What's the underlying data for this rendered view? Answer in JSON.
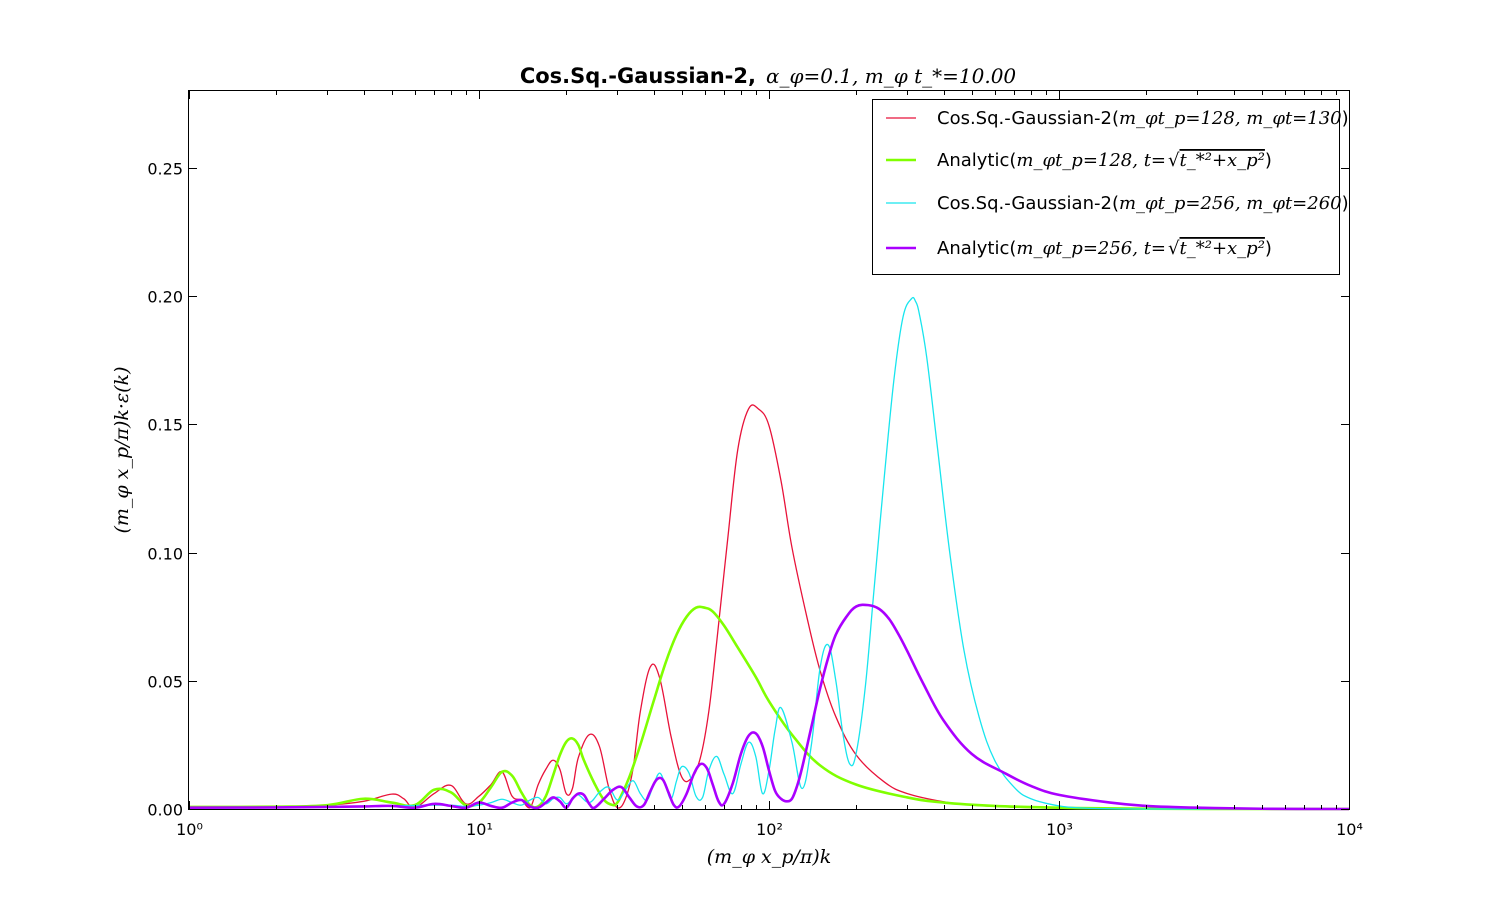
{
  "chart_data": {
    "type": "line",
    "title": {
      "bold": "Cos.Sq.-Gaussian-2,",
      "math": "α_φ=0.1, m_φ t_*=10.00"
    },
    "xlabel": "(m_φ x_p/π)k",
    "ylabel": "(m_φ x_p/π)k·ε(k)",
    "xscale": "log",
    "xlim": [
      1,
      10000
    ],
    "ylim": [
      0,
      0.28
    ],
    "x_ticks": [
      1,
      10,
      100,
      1000,
      10000
    ],
    "x_tick_labels": [
      "10⁰",
      "10¹",
      "10²",
      "10³",
      "10⁴"
    ],
    "y_ticks": [
      0,
      0.05,
      0.1,
      0.15,
      0.2,
      0.25
    ],
    "y_tick_labels": [
      "0.00",
      "0.05",
      "0.10",
      "0.15",
      "0.20",
      "0.25"
    ],
    "grid": false,
    "legend_position": "top-right",
    "series": [
      {
        "name": "Cos.Sq.-Gaussian-2(m_φ t_p=128, m_φ t=130)",
        "color": "#e8133a",
        "width": 1.3,
        "x": [
          1,
          2,
          3,
          4,
          5,
          5.5,
          6,
          7,
          8,
          9,
          10,
          11,
          12,
          13,
          14,
          15,
          16,
          17,
          18,
          19,
          20,
          21,
          22,
          24,
          26,
          28,
          30,
          32,
          34,
          36,
          39,
          42,
          46,
          50,
          54,
          58,
          62,
          66,
          72,
          78,
          85,
          92,
          100,
          110,
          120,
          135,
          150,
          170,
          200,
          250,
          300,
          400,
          500,
          700,
          1000,
          1500,
          2000,
          3000,
          5000,
          10000
        ],
        "y": [
          0.0007,
          0.0009,
          0.0015,
          0.003,
          0.0058,
          0.004,
          0.0005,
          0.006,
          0.0092,
          0.002,
          0.005,
          0.0095,
          0.0145,
          0.005,
          0.0035,
          0.0005,
          0.0095,
          0.0155,
          0.019,
          0.0155,
          0.006,
          0.008,
          0.02,
          0.029,
          0.0245,
          0.0085,
          0.0005,
          0.004,
          0.016,
          0.038,
          0.0555,
          0.051,
          0.028,
          0.0125,
          0.012,
          0.02,
          0.038,
          0.065,
          0.105,
          0.14,
          0.156,
          0.156,
          0.1495,
          0.128,
          0.102,
          0.075,
          0.054,
          0.036,
          0.021,
          0.0105,
          0.006,
          0.0028,
          0.0015,
          0.0007,
          0.0003,
          0.0001,
          0,
          0,
          0,
          0
        ]
      },
      {
        "name": "Analytic(m_φ t_p=128, t=√(t_*²+x_p²))",
        "color": "#80ff00",
        "width": 2.6,
        "x": [
          1,
          2,
          3,
          4,
          5,
          6,
          7,
          8,
          9,
          10,
          11,
          12,
          13,
          14,
          15,
          16,
          17,
          18,
          19,
          20,
          21,
          22,
          23,
          25,
          27,
          29,
          30,
          31,
          33,
          36,
          40,
          44,
          48,
          52,
          56,
          60,
          64,
          70,
          78,
          90,
          100,
          120,
          150,
          200,
          300,
          400,
          600,
          1000,
          2000,
          5000,
          10000
        ],
        "y": [
          0.0008,
          0.0009,
          0.0015,
          0.004,
          0.0025,
          0.0015,
          0.0075,
          0.0065,
          0.0015,
          0.0025,
          0.0085,
          0.0145,
          0.013,
          0.0065,
          0.0015,
          0.001,
          0.005,
          0.013,
          0.021,
          0.0262,
          0.0275,
          0.025,
          0.019,
          0.01,
          0.0035,
          0.0015,
          0.0025,
          0.0055,
          0.0125,
          0.025,
          0.042,
          0.057,
          0.068,
          0.075,
          0.0785,
          0.0785,
          0.077,
          0.0715,
          0.063,
          0.0515,
          0.042,
          0.029,
          0.017,
          0.0095,
          0.0045,
          0.0025,
          0.0012,
          0.0005,
          0.0001,
          0,
          0
        ]
      },
      {
        "name": "Cos.Sq.-Gaussian-2(m_φ t_p=256, m_φ t=260)",
        "color": "#18e5ee",
        "width": 1.3,
        "x": [
          1,
          2,
          3,
          5,
          7,
          8,
          9,
          10,
          11,
          12,
          13,
          14,
          15,
          16,
          17,
          18,
          19,
          20,
          21,
          22,
          24,
          26,
          28,
          30,
          32,
          34,
          36,
          38,
          40,
          42,
          44,
          46,
          48,
          50,
          53,
          56,
          59,
          62,
          66,
          70,
          75,
          80,
          85,
          90,
          95,
          100,
          105,
          110,
          120,
          130,
          140,
          150,
          160,
          170,
          180,
          190,
          200,
          215,
          230,
          250,
          270,
          290,
          310,
          320,
          330,
          350,
          380,
          420,
          470,
          530,
          600,
          700,
          800,
          1000,
          1200,
          1500,
          2000,
          3000,
          5000,
          10000
        ],
        "y": [
          0.0003,
          0.0005,
          0.0008,
          0.0012,
          0.0015,
          0.0015,
          0.001,
          0.0015,
          0.0025,
          0.0038,
          0.0025,
          0.0015,
          0.0035,
          0.0045,
          0.002,
          0.004,
          0.0045,
          0.002,
          0.004,
          0.0055,
          0.0025,
          0.0065,
          0.0085,
          0.0035,
          0.0075,
          0.011,
          0.006,
          0.0035,
          0.0095,
          0.014,
          0.009,
          0.004,
          0.011,
          0.0165,
          0.014,
          0.005,
          0.0045,
          0.015,
          0.0205,
          0.0135,
          0.006,
          0.0175,
          0.026,
          0.0205,
          0.006,
          0.015,
          0.031,
          0.0395,
          0.026,
          0.008,
          0.025,
          0.055,
          0.064,
          0.05,
          0.029,
          0.0175,
          0.022,
          0.048,
          0.085,
          0.13,
          0.168,
          0.192,
          0.199,
          0.198,
          0.193,
          0.176,
          0.142,
          0.1,
          0.062,
          0.036,
          0.019,
          0.0085,
          0.004,
          0.0012,
          0.0004,
          0.0001,
          0,
          0,
          0,
          0
        ]
      },
      {
        "name": "Analytic(m_φ t_p=256, t=√(t_*²+x_p²))",
        "color": "#aa00ff",
        "width": 2.6,
        "x": [
          1,
          2,
          3,
          4,
          5,
          6,
          7,
          8,
          9,
          10,
          11,
          12,
          13,
          14,
          15,
          16,
          17,
          18,
          19,
          20,
          21,
          22,
          23,
          24,
          25,
          27,
          29,
          31,
          33,
          35,
          37,
          39,
          41,
          43,
          45,
          47,
          49,
          52,
          55,
          58,
          61,
          64,
          67,
          70,
          75,
          80,
          85,
          90,
          95,
          100,
          105,
          110,
          115,
          120,
          125,
          130,
          140,
          150,
          160,
          170,
          185,
          200,
          220,
          240,
          260,
          280,
          300,
          340,
          400,
          500,
          650,
          800,
          1000,
          1500,
          2000,
          3000,
          5000,
          10000
        ],
        "y": [
          0.0005,
          0.0006,
          0.0008,
          0.001,
          0.0012,
          0.0005,
          0.002,
          0.0012,
          0.0005,
          0.0025,
          0.0012,
          0.0005,
          0.0025,
          0.0035,
          0.001,
          0.0005,
          0.0025,
          0.0045,
          0.003,
          0.0005,
          0.004,
          0.006,
          0.0055,
          0.002,
          0.0005,
          0.004,
          0.0075,
          0.0085,
          0.0045,
          0.001,
          0.0015,
          0.007,
          0.0115,
          0.0115,
          0.0065,
          0.0015,
          0.001,
          0.006,
          0.0135,
          0.0175,
          0.016,
          0.0095,
          0.003,
          0.002,
          0.01,
          0.0215,
          0.0285,
          0.0295,
          0.0245,
          0.015,
          0.007,
          0.004,
          0.003,
          0.004,
          0.009,
          0.016,
          0.032,
          0.047,
          0.059,
          0.068,
          0.075,
          0.079,
          0.0795,
          0.078,
          0.074,
          0.068,
          0.0615,
          0.049,
          0.0345,
          0.0215,
          0.014,
          0.009,
          0.0055,
          0.0025,
          0.0012,
          0.0005,
          0.0001,
          0
        ]
      }
    ]
  },
  "legend": [
    {
      "text": "Cos.Sq.-Gaussian-2(",
      "math": "m_φt_p=128, m_φt=130",
      "tail": ")"
    },
    {
      "text": "Analytic(",
      "math": "m_φt_p=128, t=",
      "sqrt": "t_*²+x_p²",
      "tail": ")"
    },
    {
      "text": "Cos.Sq.-Gaussian-2(",
      "math": "m_φt_p=256, m_φt=260",
      "tail": ")"
    },
    {
      "text": "Analytic(",
      "math": "m_φt_p=256, t=",
      "sqrt": "t_*²+x_p²",
      "tail": ")"
    }
  ]
}
